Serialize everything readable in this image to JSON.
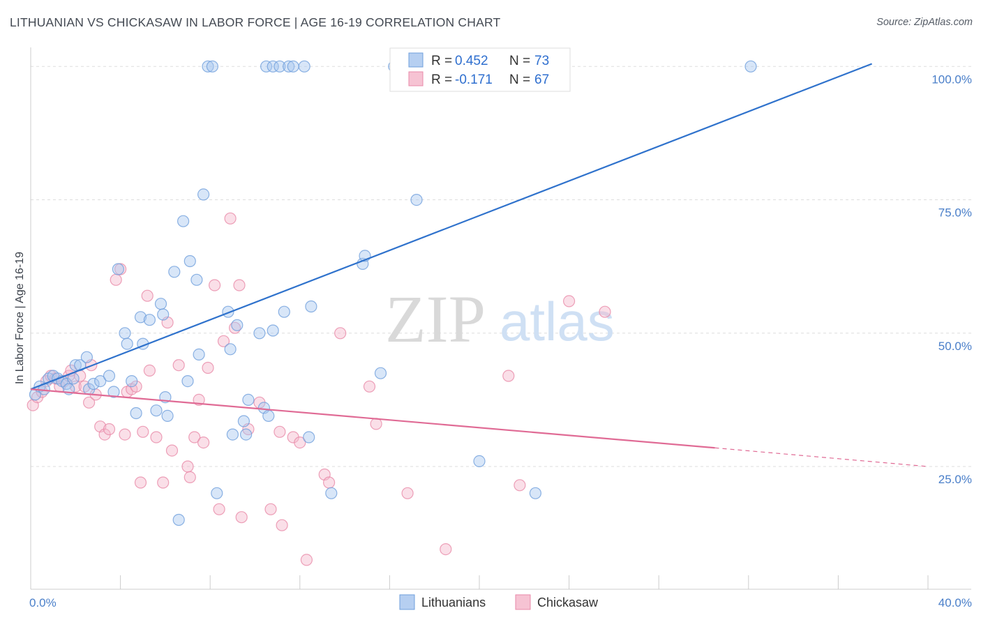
{
  "header": {
    "title": "LITHUANIAN VS CHICKASAW IN LABOR FORCE | AGE 16-19 CORRELATION CHART",
    "source": "Source: ZipAtlas.com"
  },
  "watermark": {
    "zip": "ZIP",
    "atlas": "atlas"
  },
  "legend": {
    "rows": [
      {
        "r_label": "R = ",
        "r_value": "0.452",
        "n_label": "N = ",
        "n_value": "73"
      },
      {
        "r_label": "R = ",
        "r_value": "-0.171",
        "n_label": "N = ",
        "n_value": "67"
      }
    ]
  },
  "colors": {
    "blue_fill": "#a9c7ef",
    "blue_stroke": "#6f9fdc",
    "blue_line": "#2f72cc",
    "pink_fill": "#f5b8cb",
    "pink_stroke": "#e88aa8",
    "pink_line": "#e06b95",
    "grid": "#dddddd",
    "tick_text": "#4a7fc9"
  },
  "chart_data": {
    "type": "scatter",
    "title": "LITHUANIAN VS CHICKASAW IN LABOR FORCE | AGE 16-19 CORRELATION CHART",
    "xlabel": "",
    "ylabel": "In Labor Force | Age 16-19",
    "xlim": [
      0,
      40
    ],
    "ylim": [
      2,
      102
    ],
    "x_tick_labels": [
      "0.0%",
      "40.0%"
    ],
    "y_ticks": [
      25,
      50,
      75,
      100
    ],
    "y_tick_labels": [
      "25.0%",
      "50.0%",
      "75.0%",
      "100.0%"
    ],
    "grid": true,
    "legend_position": "top-center",
    "series": [
      {
        "name": "Lithuanians",
        "r": 0.452,
        "n": 73,
        "trend": {
          "x0": 0,
          "y0": 39.5,
          "x1": 37.5,
          "y1": 100.5
        },
        "points": [
          [
            0.2,
            38.5
          ],
          [
            0.4,
            40
          ],
          [
            0.6,
            39.5
          ],
          [
            0.8,
            41.5
          ],
          [
            1.0,
            42
          ],
          [
            1.2,
            41.5
          ],
          [
            1.4,
            41
          ],
          [
            1.6,
            40.5
          ],
          [
            1.7,
            39.5
          ],
          [
            1.9,
            41.5
          ],
          [
            2.0,
            44
          ],
          [
            2.2,
            44
          ],
          [
            2.5,
            45.5
          ],
          [
            2.6,
            39.5
          ],
          [
            2.8,
            40.5
          ],
          [
            3.1,
            41
          ],
          [
            3.5,
            42
          ],
          [
            3.7,
            39
          ],
          [
            3.9,
            62
          ],
          [
            4.2,
            50
          ],
          [
            4.3,
            48
          ],
          [
            4.5,
            41
          ],
          [
            4.7,
            35
          ],
          [
            4.9,
            53
          ],
          [
            5.0,
            48
          ],
          [
            5.3,
            52.5
          ],
          [
            5.6,
            35.5
          ],
          [
            5.8,
            55.5
          ],
          [
            5.9,
            53.5
          ],
          [
            6.0,
            38
          ],
          [
            6.1,
            34.5
          ],
          [
            6.4,
            61.5
          ],
          [
            6.6,
            15
          ],
          [
            6.8,
            71
          ],
          [
            7.0,
            41
          ],
          [
            7.1,
            63.5
          ],
          [
            7.4,
            60
          ],
          [
            7.5,
            46
          ],
          [
            7.7,
            76
          ],
          [
            7.9,
            100
          ],
          [
            8.1,
            100
          ],
          [
            8.3,
            20
          ],
          [
            8.8,
            54
          ],
          [
            8.9,
            47
          ],
          [
            9.0,
            31
          ],
          [
            9.2,
            51.5
          ],
          [
            9.5,
            33.5
          ],
          [
            9.6,
            31
          ],
          [
            9.7,
            37.5
          ],
          [
            10.2,
            50
          ],
          [
            10.4,
            36
          ],
          [
            10.6,
            34.5
          ],
          [
            10.5,
            100
          ],
          [
            10.8,
            100
          ],
          [
            11.1,
            100
          ],
          [
            11.5,
            100
          ],
          [
            11.7,
            100
          ],
          [
            12.2,
            100
          ],
          [
            10.8,
            50.5
          ],
          [
            11.3,
            54
          ],
          [
            12.4,
            30.5
          ],
          [
            12.5,
            55
          ],
          [
            13.4,
            20
          ],
          [
            14.8,
            63
          ],
          [
            14.9,
            64.5
          ],
          [
            15.6,
            42.5
          ],
          [
            16.2,
            100
          ],
          [
            16.9,
            100
          ],
          [
            17.2,
            75
          ],
          [
            19.3,
            100
          ],
          [
            20.0,
            100
          ],
          [
            20.0,
            26
          ],
          [
            22.5,
            20
          ],
          [
            22.6,
            100
          ],
          [
            32.1,
            100
          ]
        ]
      },
      {
        "name": "Chickasaw",
        "r": -0.171,
        "n": 67,
        "trend": {
          "x0": 0,
          "y0": 39.5,
          "x1": 30.5,
          "y1": 28.5,
          "dash_x1": 40,
          "dash_y1": 25
        },
        "points": [
          [
            0.1,
            36.5
          ],
          [
            0.3,
            38
          ],
          [
            0.5,
            39
          ],
          [
            0.7,
            41
          ],
          [
            0.9,
            42
          ],
          [
            1.1,
            41.5
          ],
          [
            1.3,
            40
          ],
          [
            1.5,
            41
          ],
          [
            1.7,
            42
          ],
          [
            1.8,
            43
          ],
          [
            2.0,
            40
          ],
          [
            2.2,
            42
          ],
          [
            2.4,
            40
          ],
          [
            2.6,
            37
          ],
          [
            2.7,
            44
          ],
          [
            2.9,
            38.5
          ],
          [
            3.1,
            32.5
          ],
          [
            3.3,
            31
          ],
          [
            3.5,
            32
          ],
          [
            3.8,
            60
          ],
          [
            4.0,
            62
          ],
          [
            4.2,
            31
          ],
          [
            4.3,
            39
          ],
          [
            4.5,
            39.5
          ],
          [
            4.7,
            40
          ],
          [
            4.9,
            22
          ],
          [
            5.0,
            31.5
          ],
          [
            5.2,
            57
          ],
          [
            5.3,
            43
          ],
          [
            5.6,
            30.5
          ],
          [
            5.9,
            22
          ],
          [
            6.1,
            52
          ],
          [
            6.3,
            28
          ],
          [
            6.6,
            44
          ],
          [
            7.0,
            25
          ],
          [
            7.1,
            23
          ],
          [
            7.3,
            30.5
          ],
          [
            7.5,
            37.5
          ],
          [
            7.7,
            29.5
          ],
          [
            7.9,
            43.5
          ],
          [
            8.2,
            59
          ],
          [
            8.4,
            17
          ],
          [
            8.6,
            48.5
          ],
          [
            8.9,
            71.5
          ],
          [
            9.1,
            51
          ],
          [
            9.3,
            59
          ],
          [
            9.4,
            15.5
          ],
          [
            9.7,
            32
          ],
          [
            10.2,
            37
          ],
          [
            10.7,
            17
          ],
          [
            11.1,
            31.5
          ],
          [
            11.2,
            14
          ],
          [
            11.7,
            30.5
          ],
          [
            12.0,
            29.5
          ],
          [
            12.3,
            7.5
          ],
          [
            13.1,
            23.5
          ],
          [
            13.3,
            22
          ],
          [
            13.8,
            50
          ],
          [
            15.1,
            40
          ],
          [
            15.4,
            33
          ],
          [
            16.8,
            20
          ],
          [
            18.5,
            9.5
          ],
          [
            21.3,
            42
          ],
          [
            21.8,
            21.5
          ],
          [
            24.0,
            56
          ],
          [
            25.6,
            54
          ]
        ]
      }
    ]
  },
  "bottom_legend": {
    "items": [
      {
        "label": "Lithuanians"
      },
      {
        "label": "Chickasaw"
      }
    ]
  }
}
